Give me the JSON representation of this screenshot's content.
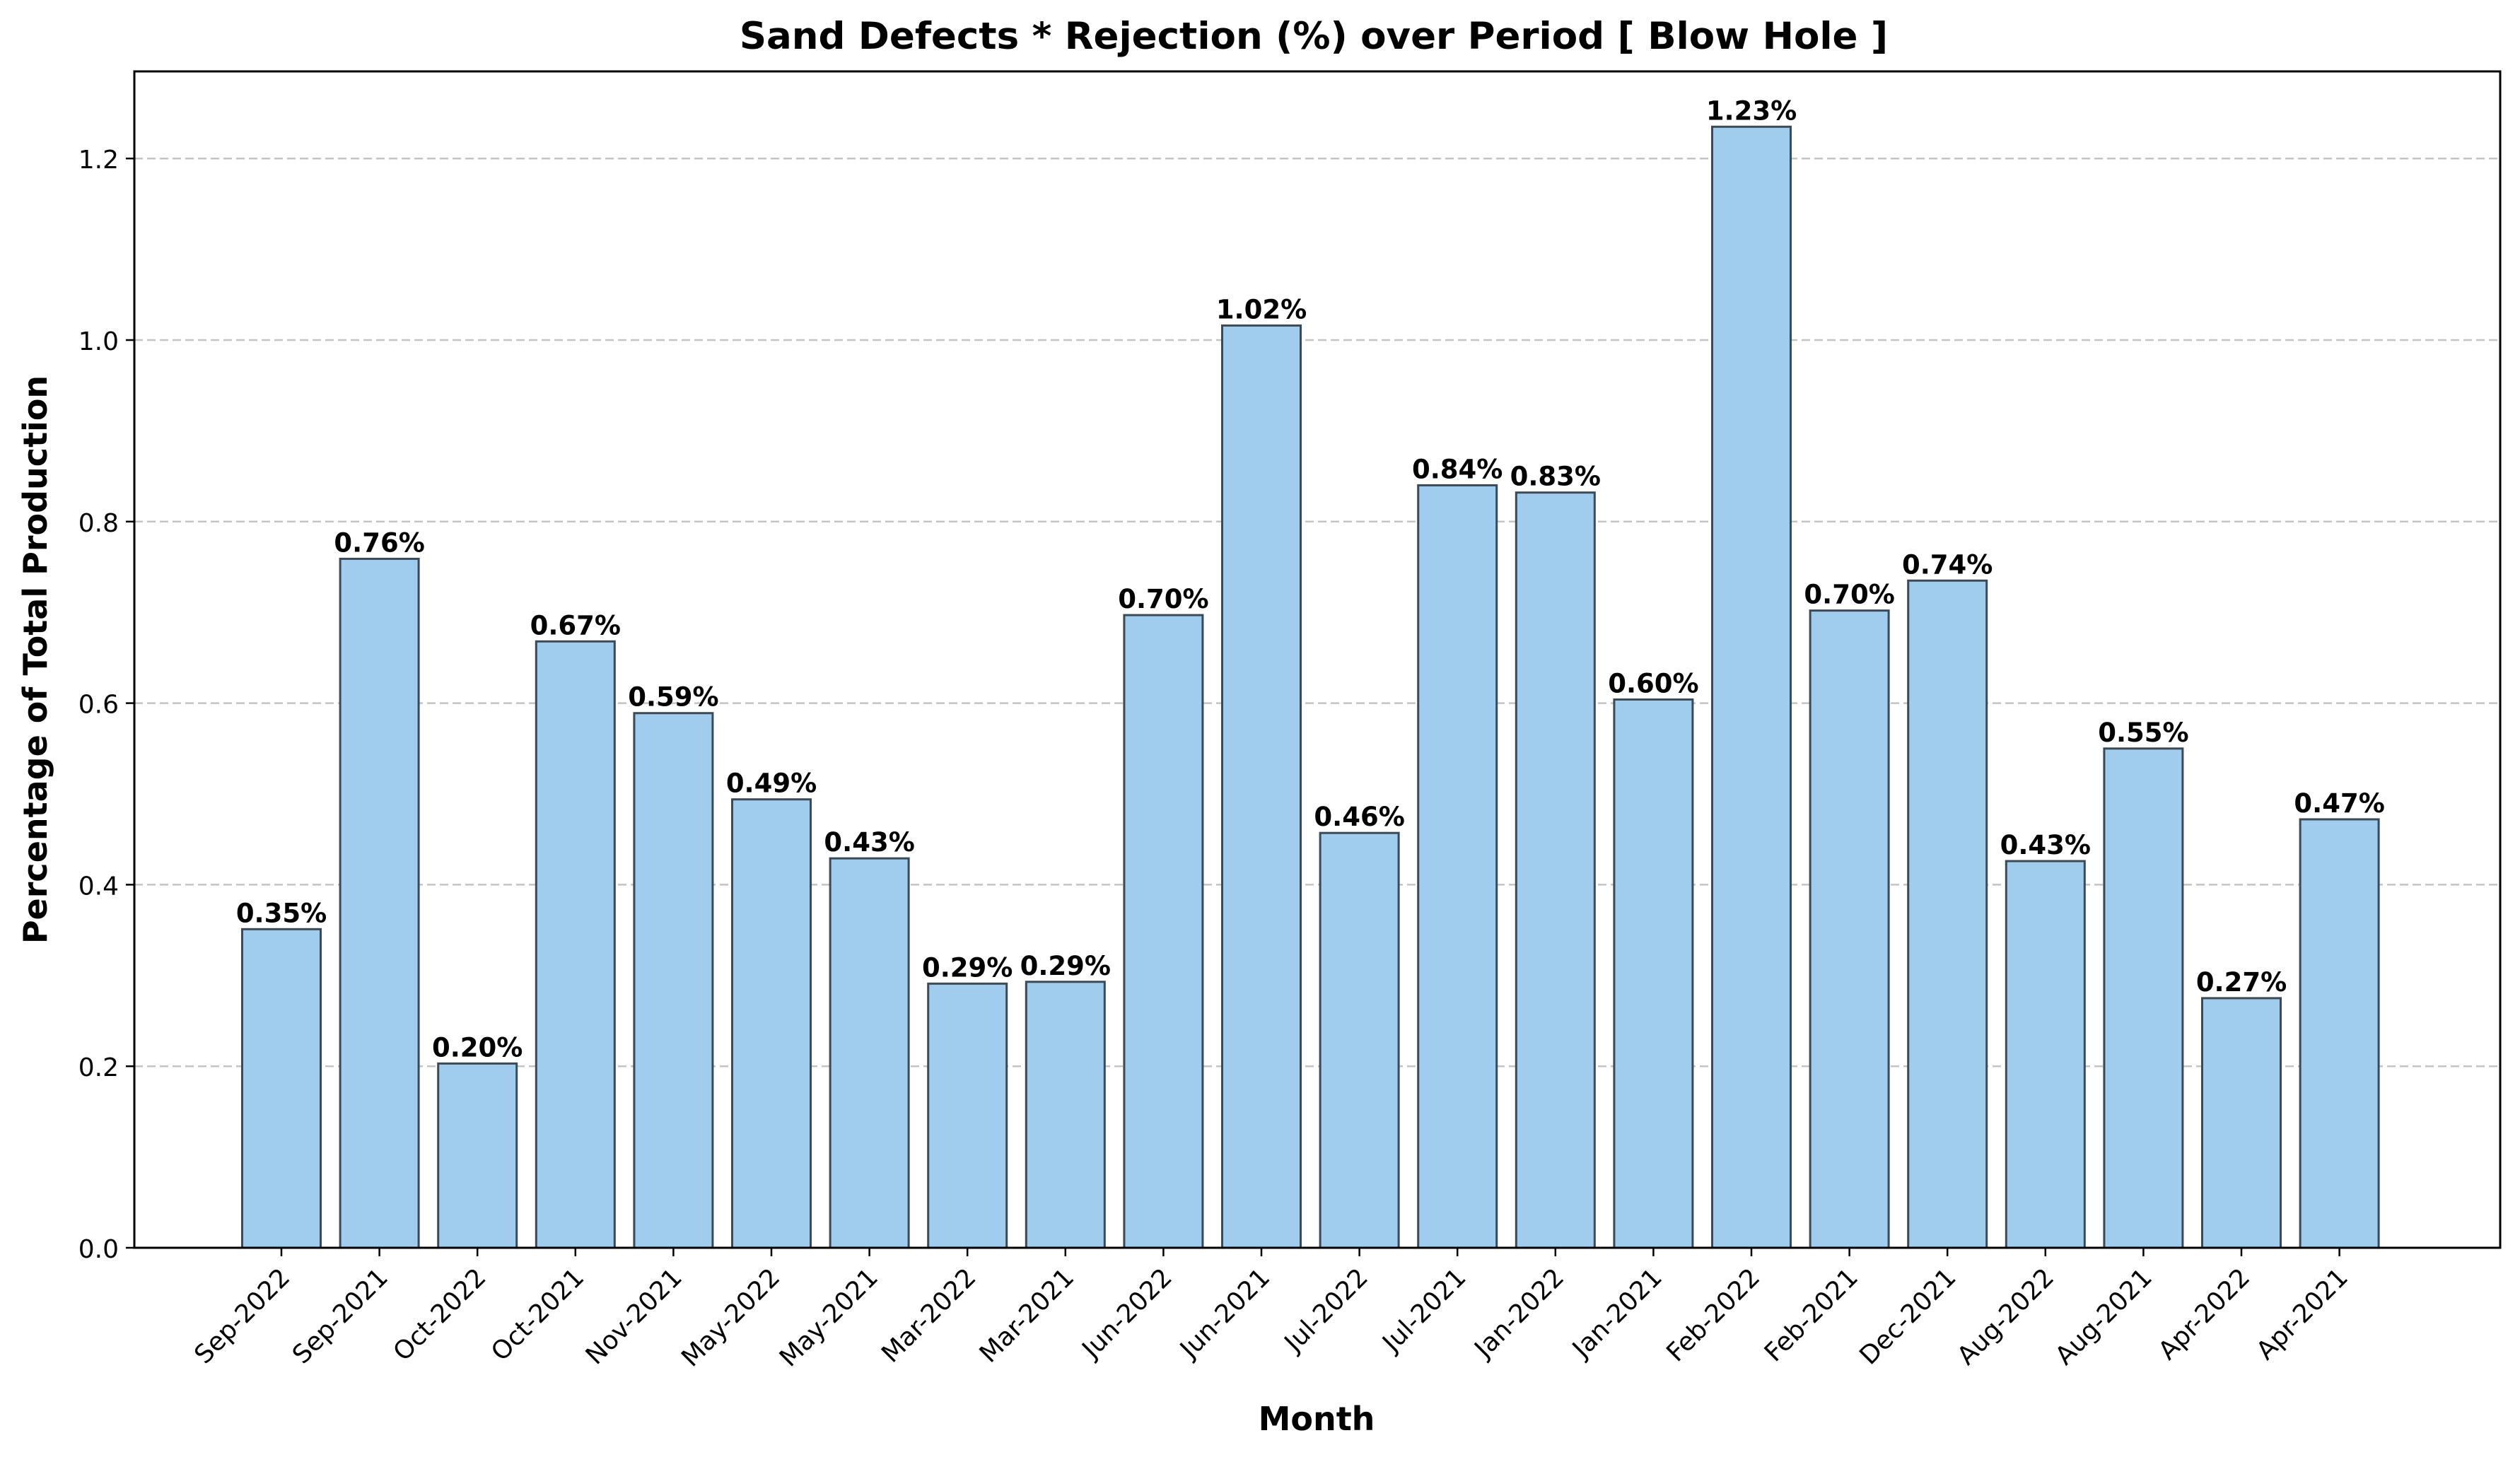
{
  "chart_data": {
    "type": "bar",
    "title": "Sand Defects * Rejection (%) over Period [ Blow Hole ]",
    "xlabel": "Month",
    "ylabel": "Percentage of Total Production",
    "ylim": [
      0,
      1.3
    ],
    "yticks": [
      "0.0",
      "0.2",
      "0.4",
      "0.6",
      "0.8",
      "1.0",
      "1.2"
    ],
    "grid": "y-dashed",
    "categories": [
      "Sep-2022",
      "Sep-2021",
      "Oct-2022",
      "Oct-2021",
      "Nov-2021",
      "May-2022",
      "May-2021",
      "Mar-2022",
      "Mar-2021",
      "Jun-2022",
      "Jun-2021",
      "Jul-2022",
      "Jul-2021",
      "Jan-2022",
      "Jan-2021",
      "Feb-2022",
      "Feb-2021",
      "Dec-2021",
      "Aug-2022",
      "Aug-2021",
      "Apr-2022",
      "Apr-2021"
    ],
    "values": [
      0.351,
      0.759,
      0.203,
      0.668,
      0.589,
      0.494,
      0.429,
      0.291,
      0.293,
      0.697,
      1.016,
      0.457,
      0.84,
      0.832,
      0.604,
      1.235,
      0.702,
      0.735,
      0.426,
      0.55,
      0.275,
      0.472
    ],
    "data_labels": [
      "0.35%",
      "0.76%",
      "0.20%",
      "0.67%",
      "0.59%",
      "0.49%",
      "0.43%",
      "0.29%",
      "0.29%",
      "0.70%",
      "1.02%",
      "0.46%",
      "0.84%",
      "0.83%",
      "0.60%",
      "1.23%",
      "0.70%",
      "0.74%",
      "0.43%",
      "0.55%",
      "0.27%",
      "0.47%"
    ],
    "colors": {
      "bar_fill": "#a0cdee",
      "bar_edge": "#3a4a58",
      "grid": "#c4c4c4",
      "axis": "#000000",
      "text": "#000000"
    }
  }
}
